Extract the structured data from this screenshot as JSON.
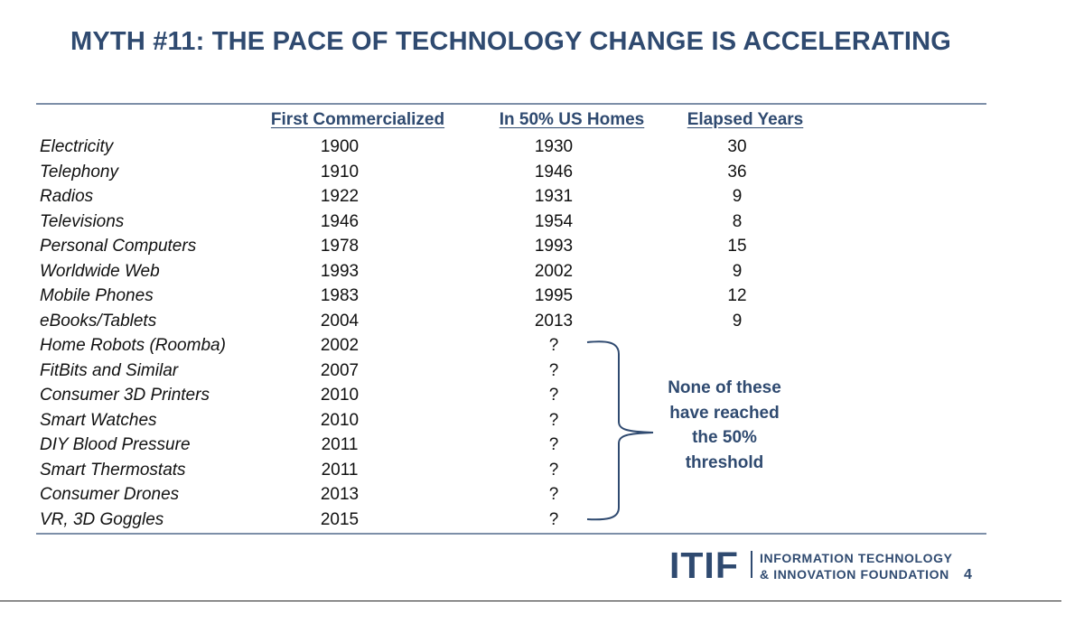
{
  "title": "MYTH #11: THE PACE OF TECHNOLOGY CHANGE IS ACCELERATING",
  "table": {
    "headers": [
      "First Commercialized",
      "In 50% US Homes",
      "Elapsed Years"
    ],
    "rows": [
      [
        "Electricity",
        "1900",
        "1930",
        "30"
      ],
      [
        "Telephony",
        "1910",
        "1946",
        "36"
      ],
      [
        "Radios",
        "1922",
        "1931",
        "9"
      ],
      [
        "Televisions",
        "1946",
        "1954",
        "8"
      ],
      [
        "Personal Computers",
        "1978",
        "1993",
        "15"
      ],
      [
        "Worldwide Web",
        "1993",
        "2002",
        "9"
      ],
      [
        "Mobile Phones",
        "1983",
        "1995",
        "12"
      ],
      [
        "eBooks/Tablets",
        "2004",
        "2013",
        "9"
      ],
      [
        "Home Robots (Roomba)",
        "2002",
        "?",
        ""
      ],
      [
        "FitBits and Similar",
        "2007",
        "?",
        ""
      ],
      [
        "Consumer 3D Printers",
        "2010",
        "?",
        ""
      ],
      [
        "Smart Watches",
        "2010",
        "?",
        ""
      ],
      [
        "DIY Blood Pressure",
        "2011",
        "?",
        ""
      ],
      [
        "Smart Thermostats",
        "2011",
        "?",
        ""
      ],
      [
        "Consumer Drones",
        "2013",
        "?",
        ""
      ],
      [
        "VR, 3D Goggles",
        "2015",
        "?",
        ""
      ]
    ]
  },
  "annotation": {
    "lines": [
      "None of these",
      "have reached",
      "the 50%",
      "threshold"
    ]
  },
  "footer": {
    "logo_mark": "ITIF",
    "logo_line1": "INFORMATION TECHNOLOGY",
    "logo_line2": "& INNOVATION FOUNDATION",
    "page_number": "4"
  },
  "colors": {
    "accent": "#2f4a70",
    "rule": "#7d8fa8"
  }
}
